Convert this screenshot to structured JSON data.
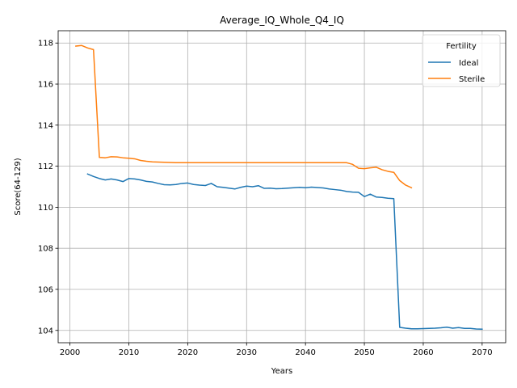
{
  "chart_data": {
    "type": "line",
    "title": "Average_IQ_Whole_Q4_IQ",
    "xlabel": "Years",
    "ylabel": "Score(64-129)",
    "xlim": [
      1998,
      2074
    ],
    "ylim": [
      103.4,
      118.6
    ],
    "xticks": [
      2000,
      2010,
      2020,
      2030,
      2040,
      2050,
      2060,
      2070
    ],
    "yticks": [
      104,
      106,
      108,
      110,
      112,
      114,
      116,
      118
    ],
    "grid": true,
    "legend": {
      "title": "Fertility",
      "placement": "top-right"
    },
    "series": [
      {
        "name": "Ideal",
        "color": "#1f77b4",
        "x": [
          2003,
          2004,
          2005,
          2006,
          2007,
          2008,
          2009,
          2010,
          2011,
          2012,
          2013,
          2014,
          2015,
          2016,
          2017,
          2018,
          2019,
          2020,
          2021,
          2022,
          2023,
          2024,
          2025,
          2026,
          2027,
          2028,
          2029,
          2030,
          2031,
          2032,
          2033,
          2034,
          2035,
          2036,
          2037,
          2038,
          2039,
          2040,
          2041,
          2042,
          2043,
          2044,
          2045,
          2046,
          2047,
          2048,
          2049,
          2050,
          2051,
          2052,
          2053,
          2054,
          2055,
          2056,
          2057,
          2058,
          2059,
          2060,
          2061,
          2062,
          2063,
          2064,
          2065,
          2066,
          2067,
          2068,
          2069,
          2070
        ],
        "y": [
          111.62,
          111.5,
          111.4,
          111.33,
          111.38,
          111.33,
          111.25,
          111.4,
          111.38,
          111.33,
          111.26,
          111.23,
          111.16,
          111.1,
          111.09,
          111.11,
          111.16,
          111.18,
          111.11,
          111.08,
          111.06,
          111.16,
          111.0,
          110.97,
          110.93,
          110.89,
          110.97,
          111.03,
          111.0,
          111.05,
          110.92,
          110.93,
          110.9,
          110.91,
          110.93,
          110.95,
          110.97,
          110.95,
          110.98,
          110.96,
          110.94,
          110.89,
          110.86,
          110.83,
          110.77,
          110.74,
          110.73,
          110.52,
          110.64,
          110.5,
          110.48,
          110.44,
          110.42,
          104.15,
          104.11,
          104.08,
          104.08,
          104.09,
          104.1,
          104.11,
          104.13,
          104.16,
          104.11,
          104.14,
          104.1,
          104.1,
          104.07,
          104.06
        ]
      },
      {
        "name": "Sterile",
        "color": "#ff7f0e",
        "x": [
          2001,
          2002,
          2003,
          2004,
          2005,
          2006,
          2007,
          2008,
          2009,
          2010,
          2011,
          2012,
          2013,
          2014,
          2015,
          2016,
          2017,
          2018,
          2019,
          2020,
          2021,
          2022,
          2023,
          2024,
          2025,
          2026,
          2027,
          2028,
          2029,
          2030,
          2031,
          2032,
          2033,
          2034,
          2035,
          2036,
          2037,
          2038,
          2039,
          2040,
          2041,
          2042,
          2043,
          2044,
          2045,
          2046,
          2047,
          2048,
          2049,
          2050,
          2051,
          2052,
          2053,
          2054,
          2055,
          2056,
          2057,
          2058
        ],
        "y": [
          117.85,
          117.88,
          117.76,
          117.68,
          112.43,
          112.41,
          112.46,
          112.45,
          112.41,
          112.39,
          112.36,
          112.28,
          112.24,
          112.21,
          112.2,
          112.19,
          112.18,
          112.17,
          112.17,
          112.17,
          112.17,
          112.17,
          112.17,
          112.17,
          112.17,
          112.17,
          112.17,
          112.17,
          112.17,
          112.17,
          112.17,
          112.17,
          112.17,
          112.17,
          112.17,
          112.17,
          112.17,
          112.17,
          112.17,
          112.17,
          112.17,
          112.17,
          112.17,
          112.17,
          112.17,
          112.17,
          112.17,
          112.09,
          111.9,
          111.88,
          111.92,
          111.95,
          111.83,
          111.75,
          111.7,
          111.3,
          111.08,
          110.95
        ]
      }
    ]
  }
}
